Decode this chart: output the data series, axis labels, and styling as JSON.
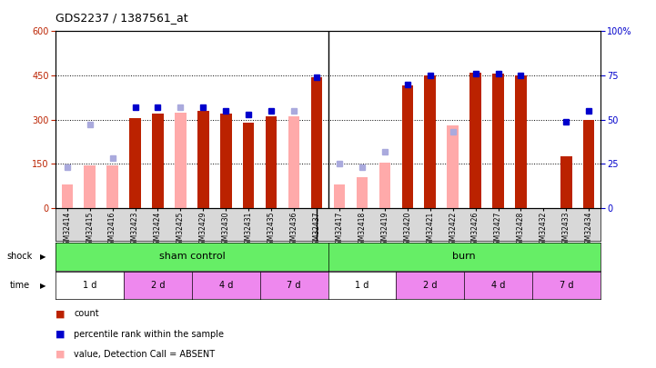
{
  "title": "GDS2237 / 1387561_at",
  "samples": [
    "GSM32414",
    "GSM32415",
    "GSM32416",
    "GSM32423",
    "GSM32424",
    "GSM32425",
    "GSM32429",
    "GSM32430",
    "GSM32431",
    "GSM32435",
    "GSM32436",
    "GSM32437",
    "GSM32417",
    "GSM32418",
    "GSM32419",
    "GSM32420",
    "GSM32421",
    "GSM32422",
    "GSM32426",
    "GSM32427",
    "GSM32428",
    "GSM32432",
    "GSM32433",
    "GSM32434"
  ],
  "count_values": [
    null,
    null,
    null,
    305,
    320,
    null,
    330,
    320,
    290,
    310,
    null,
    445,
    null,
    null,
    null,
    415,
    450,
    null,
    460,
    455,
    450,
    null,
    175,
    300
  ],
  "rank_pct": [
    null,
    null,
    null,
    57,
    57,
    null,
    57,
    55,
    53,
    55,
    null,
    74,
    null,
    null,
    null,
    70,
    75,
    null,
    76,
    76,
    75,
    null,
    49,
    55
  ],
  "count_absent": [
    80,
    145,
    145,
    null,
    null,
    325,
    null,
    null,
    null,
    null,
    310,
    null,
    80,
    105,
    155,
    null,
    null,
    280,
    null,
    null,
    null,
    null,
    null,
    null
  ],
  "rank_absent_pct": [
    23,
    47,
    28,
    null,
    null,
    57,
    null,
    null,
    null,
    null,
    55,
    null,
    25,
    23,
    32,
    null,
    null,
    43,
    null,
    null,
    null,
    null,
    null,
    null
  ],
  "ylim_left": [
    0,
    600
  ],
  "ylim_right": [
    0,
    100
  ],
  "yticks_left": [
    0,
    150,
    300,
    450,
    600
  ],
  "yticks_right": [
    0,
    25,
    50,
    75,
    100
  ],
  "color_count": "#bb2200",
  "color_rank": "#0000cc",
  "color_count_absent": "#ffaaaa",
  "color_rank_absent": "#aaaadd",
  "bar_width": 0.5,
  "marker_size": 5,
  "sham_color": "#66ee66",
  "burn_color": "#66ee66",
  "time_white": "#ffffff",
  "time_pink": "#ee88ee",
  "bg_gray": "#d8d8d8",
  "n_sham": 12,
  "n_burn": 12,
  "shock_labels": [
    "sham control",
    "burn"
  ],
  "time_labels": [
    "1 d",
    "2 d",
    "4 d",
    "7 d",
    "1 d",
    "2 d",
    "4 d",
    "7 d"
  ],
  "time_sizes": [
    3,
    3,
    3,
    3,
    3,
    3,
    3,
    3
  ]
}
